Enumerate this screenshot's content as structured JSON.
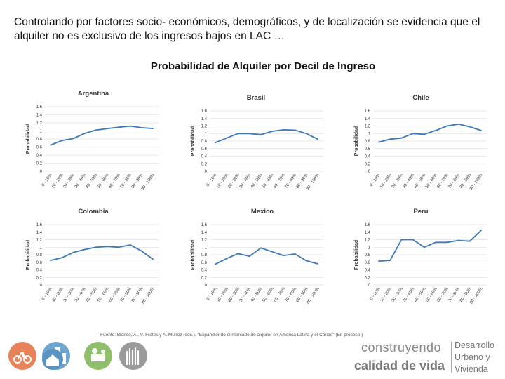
{
  "heading": "Controlando por factores socio- económicos, demográficos, y de localización se evidencia que el alquiler no es exclusivo de los ingresos bajos en LAC …",
  "subtitle": "Probabilidad de Alquiler por Decil de Ingreso",
  "source": "Fuente: Blanco, A., V. Fretes y A. Munoz (eds.). \"Expandiendo el mercado de alquiler en America Latina y el Caribe\" (En proceso )",
  "brand": {
    "line1": "construyendo",
    "line2": "calidad de vida",
    "side1": "Desarrollo",
    "side2": "Urbano y",
    "side3": "Vivienda"
  },
  "colors": {
    "line": "#3e78b8",
    "grid": "#d6d6d6",
    "icon_orange": "#e8825a",
    "icon_blue": "#6fa6cf",
    "icon_green": "#8fbf6a",
    "icon_gray": "#9a9a9a"
  },
  "chart_data": [
    {
      "type": "line",
      "title": "Argentina",
      "ylabel": "Probabilidad",
      "ylim": [
        0,
        1.6
      ],
      "yticks": [
        "0",
        "0.2",
        "0.4",
        "0.6",
        "0.8",
        "1",
        "1.2",
        "1.4",
        "1.6"
      ],
      "categories": [
        "0 - 10%",
        "10 - 20%",
        "20 - 30%",
        "30 - 40%",
        "40 - 50%",
        "50 - 60%",
        "60 - 70%",
        "70 - 80%",
        "80 - 90%",
        "90 - 100%"
      ],
      "values": [
        0.65,
        0.76,
        0.81,
        0.94,
        1.02,
        1.06,
        1.09,
        1.12,
        1.08,
        1.06
      ]
    },
    {
      "type": "line",
      "title": "Brasil",
      "ylabel": "Probabilidad",
      "ylim": [
        0,
        1.6
      ],
      "yticks": [
        "0",
        "0.2",
        "0.4",
        "0.6",
        "0.8",
        "1",
        "1.2",
        "1.4",
        "1.6"
      ],
      "categories": [
        "0 - 10%",
        "10 - 20%",
        "20 - 30%",
        "30 - 40%",
        "40 - 50%",
        "50 - 60%",
        "60 - 70%",
        "70 - 80%",
        "80 - 90%",
        "90 - 100%"
      ],
      "values": [
        0.76,
        0.88,
        1.0,
        1.0,
        0.97,
        1.06,
        1.1,
        1.09,
        1.0,
        0.85
      ]
    },
    {
      "type": "line",
      "title": "Chile",
      "ylabel": "Probabilidad",
      "ylim": [
        0,
        1.6
      ],
      "yticks": [
        "0",
        "0.2",
        "0.4",
        "0.6",
        "0.8",
        "1",
        "1.2",
        "1.4",
        "1.6"
      ],
      "categories": [
        "0 - 10%",
        "10 - 20%",
        "20 - 30%",
        "30 - 40%",
        "40 - 50%",
        "50 - 60%",
        "60 - 70%",
        "70 - 80%",
        "80 - 90%",
        "90 - 100%"
      ],
      "values": [
        0.77,
        0.85,
        0.88,
        1.0,
        0.98,
        1.08,
        1.2,
        1.25,
        1.18,
        1.08
      ]
    },
    {
      "type": "line",
      "title": "Colombia",
      "ylabel": "Probabilidad",
      "ylim": [
        0,
        1.6
      ],
      "yticks": [
        "0",
        "0.2",
        "0.4",
        "0.6",
        "0.8",
        "1",
        "1.2",
        "1.4",
        "1.6"
      ],
      "categories": [
        "0 - 10%",
        "10 - 20%",
        "20 - 30%",
        "30 - 40%",
        "40 - 50%",
        "50 - 60%",
        "60 - 70%",
        "70 - 80%",
        "80 - 90%",
        "90 - 100%"
      ],
      "values": [
        0.65,
        0.72,
        0.86,
        0.94,
        1.0,
        1.02,
        1.0,
        1.06,
        0.9,
        0.68
      ]
    },
    {
      "type": "line",
      "title": "Mexico",
      "ylabel": "Probabilidad",
      "ylim": [
        0,
        1.6
      ],
      "yticks": [
        "0",
        "0.2",
        "0.4",
        "0.6",
        "0.8",
        "1",
        "1.2",
        "1.4",
        "1.6"
      ],
      "categories": [
        "0 - 10%",
        "10 - 20%",
        "20 - 30%",
        "30 - 40%",
        "40 - 50%",
        "50 - 60%",
        "60 - 70%",
        "70 - 80%",
        "80 - 90%",
        "90 - 100%"
      ],
      "values": [
        0.55,
        0.7,
        0.83,
        0.76,
        0.98,
        0.88,
        0.78,
        0.82,
        0.64,
        0.56
      ]
    },
    {
      "type": "line",
      "title": "Peru",
      "ylabel": "Probabilidad",
      "ylim": [
        0,
        1.6
      ],
      "yticks": [
        "0",
        "0.2",
        "0.4",
        "0.6",
        "0.8",
        "1",
        "1.2",
        "1.4",
        "1.6"
      ],
      "categories": [
        "0 - 10%",
        "10 - 20%",
        "20 - 30%",
        "30 - 40%",
        "40 - 50%",
        "50 - 60%",
        "60 - 70%",
        "70 - 80%",
        "80 - 90%",
        "90 - 100%"
      ],
      "values": [
        0.63,
        0.65,
        1.2,
        1.2,
        1.0,
        1.13,
        1.13,
        1.18,
        1.16,
        1.45
      ]
    }
  ]
}
